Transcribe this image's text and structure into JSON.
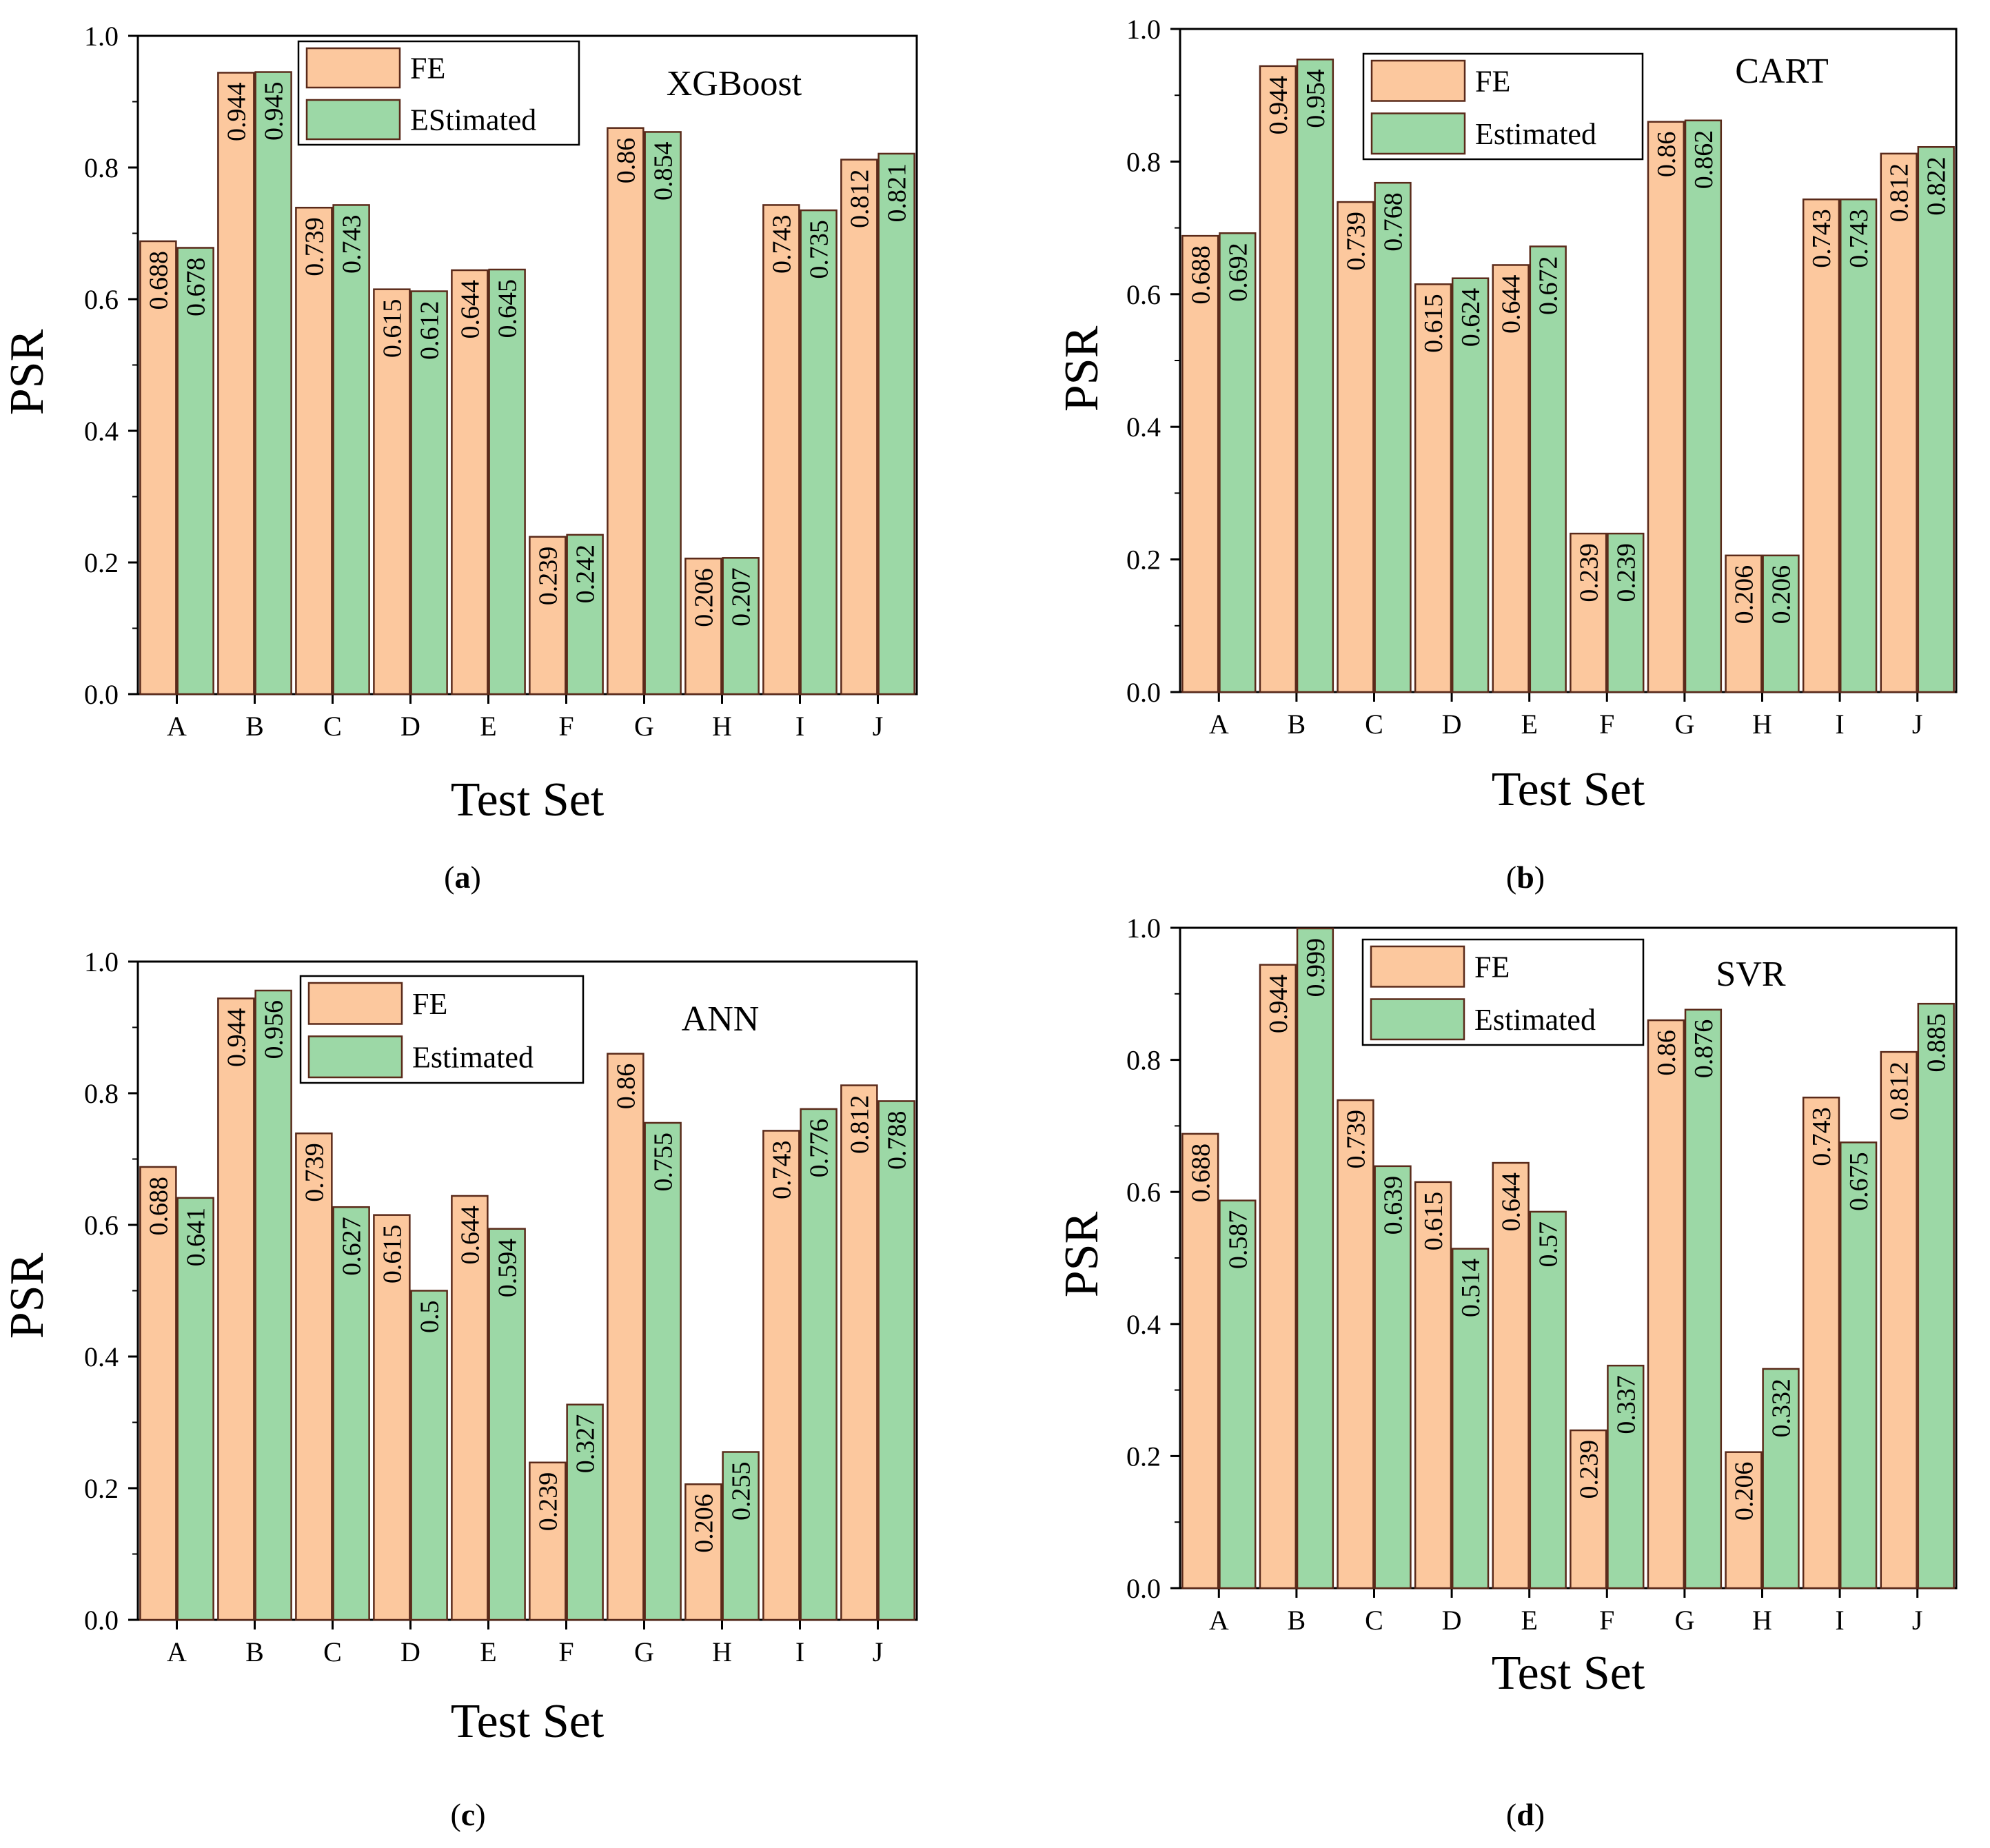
{
  "figure": {
    "captions": [
      {
        "open": "(",
        "letter": "a",
        "close": ")"
      },
      {
        "open": "(",
        "letter": "b",
        "close": ")"
      },
      {
        "open": "(",
        "letter": "c",
        "close": ")"
      },
      {
        "open": "(",
        "letter": "d",
        "close": ")"
      }
    ]
  },
  "colors": {
    "fe": "#FCC89E",
    "estimated": "#9CD8A6",
    "border": "#5a2a1a",
    "axis": "#000000"
  },
  "chart_data": [
    {
      "type": "bar",
      "title": "XGBoost",
      "xlabel": "Test Set",
      "ylabel": "PSR",
      "ylim": [
        0,
        1.0
      ],
      "yticks": [
        "0.0",
        "0.2",
        "0.4",
        "0.6",
        "0.8",
        "1.0"
      ],
      "categories": [
        "A",
        "B",
        "C",
        "D",
        "E",
        "F",
        "G",
        "H",
        "I",
        "J"
      ],
      "legend": "top-left",
      "series": [
        {
          "name": "FE",
          "values": [
            0.688,
            0.944,
            0.739,
            0.615,
            0.644,
            0.239,
            0.86,
            0.206,
            0.743,
            0.812
          ],
          "labels": [
            "0.688",
            "0.944",
            "0.739",
            "0.615",
            "0.644",
            "0.239",
            "0.86",
            "0.206",
            "0.743",
            "0.812"
          ]
        },
        {
          "name": "EStimated",
          "values": [
            0.678,
            0.945,
            0.743,
            0.612,
            0.645,
            0.242,
            0.854,
            0.207,
            0.735,
            0.821
          ],
          "labels": [
            "0.678",
            "0.945",
            "0.743",
            "0.612",
            "0.645",
            "0.242",
            "0.854",
            "0.207",
            "0.735",
            "0.821"
          ]
        }
      ]
    },
    {
      "type": "bar",
      "title": "CART",
      "xlabel": "Test Set",
      "ylabel": "PSR",
      "ylim": [
        0,
        1.0
      ],
      "yticks": [
        "0.0",
        "0.2",
        "0.4",
        "0.6",
        "0.8",
        "1.0"
      ],
      "categories": [
        "A",
        "B",
        "C",
        "D",
        "E",
        "F",
        "G",
        "H",
        "I",
        "J"
      ],
      "legend": "top-left",
      "series": [
        {
          "name": "FE",
          "values": [
            0.688,
            0.944,
            0.739,
            0.615,
            0.644,
            0.239,
            0.86,
            0.206,
            0.743,
            0.812
          ],
          "labels": [
            "0.688",
            "0.944",
            "0.739",
            "0.615",
            "0.644",
            "0.239",
            "0.86",
            "0.206",
            "0.743",
            "0.812"
          ]
        },
        {
          "name": "Estimated",
          "values": [
            0.692,
            0.954,
            0.768,
            0.624,
            0.672,
            0.239,
            0.862,
            0.206,
            0.743,
            0.822
          ],
          "labels": [
            "0.692",
            "0.954",
            "0.768",
            "0.624",
            "0.672",
            "0.239",
            "0.862",
            "0.206",
            "0.743",
            "0.822"
          ]
        }
      ]
    },
    {
      "type": "bar",
      "title": "ANN",
      "xlabel": "Test Set",
      "ylabel": "PSR",
      "ylim": [
        0,
        1.0
      ],
      "yticks": [
        "0.0",
        "0.2",
        "0.4",
        "0.6",
        "0.8",
        "1.0"
      ],
      "categories": [
        "A",
        "B",
        "C",
        "D",
        "E",
        "F",
        "G",
        "H",
        "I",
        "J"
      ],
      "legend": "top-left",
      "series": [
        {
          "name": "FE",
          "values": [
            0.688,
            0.944,
            0.739,
            0.615,
            0.644,
            0.239,
            0.86,
            0.206,
            0.743,
            0.812
          ],
          "labels": [
            "0.688",
            "0.944",
            "0.739",
            "0.615",
            "0.644",
            "0.239",
            "0.86",
            "0.206",
            "0.743",
            "0.812"
          ]
        },
        {
          "name": "Estimated",
          "values": [
            0.641,
            0.956,
            0.627,
            0.5,
            0.594,
            0.327,
            0.755,
            0.255,
            0.776,
            0.788
          ],
          "labels": [
            "0.641",
            "0.956",
            "0.627",
            "0.5",
            "0.594",
            "0.327",
            "0.755",
            "0.255",
            "0.776",
            "0.788"
          ]
        }
      ]
    },
    {
      "type": "bar",
      "title": "SVR",
      "xlabel": "Test Set",
      "ylabel": "PSR",
      "ylim": [
        0,
        1.0
      ],
      "yticks": [
        "0.0",
        "0.2",
        "0.4",
        "0.6",
        "0.8",
        "1.0"
      ],
      "categories": [
        "A",
        "B",
        "C",
        "D",
        "E",
        "F",
        "G",
        "H",
        "I",
        "J"
      ],
      "legend": "top-left",
      "series": [
        {
          "name": "FE",
          "values": [
            0.688,
            0.944,
            0.739,
            0.615,
            0.644,
            0.239,
            0.86,
            0.206,
            0.743,
            0.812
          ],
          "labels": [
            "0.688",
            "0.944",
            "0.739",
            "0.615",
            "0.644",
            "0.239",
            "0.86",
            "0.206",
            "0.743",
            "0.812"
          ]
        },
        {
          "name": "Estimated",
          "values": [
            0.587,
            0.999,
            0.639,
            0.514,
            0.57,
            0.337,
            0.876,
            0.332,
            0.675,
            0.885
          ],
          "labels": [
            "0.587",
            "0.999",
            "0.639",
            "0.514",
            "0.57",
            "0.337",
            "0.876",
            "0.332",
            "0.675",
            "0.885"
          ]
        }
      ]
    }
  ]
}
